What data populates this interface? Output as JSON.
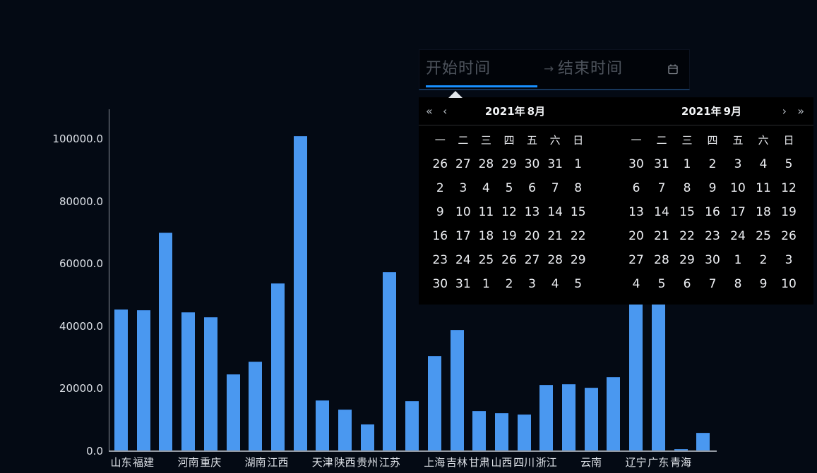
{
  "colors": {
    "background": "#040a14",
    "panel_background": "#000000",
    "bar_blue": "#4a98f0",
    "accent_blue": "#1890ff",
    "placeholder_gray": "#4d535c"
  },
  "date_picker": {
    "start_placeholder": "开始时间",
    "separator_icon": "→",
    "end_placeholder": "结束时间",
    "suffix_icon": "calendar-icon"
  },
  "calendar": {
    "nav": {
      "prev_year": "«",
      "prev_month": "‹",
      "next_month": "›",
      "next_year": "»"
    },
    "weekdays": [
      "一",
      "二",
      "三",
      "四",
      "五",
      "六",
      "日"
    ],
    "panels": [
      {
        "year": "2021年",
        "month": "8月",
        "rows": [
          [
            26,
            27,
            28,
            29,
            30,
            31,
            1
          ],
          [
            2,
            3,
            4,
            5,
            6,
            7,
            8
          ],
          [
            9,
            10,
            11,
            12,
            13,
            14,
            15
          ],
          [
            16,
            17,
            18,
            19,
            20,
            21,
            22
          ],
          [
            23,
            24,
            25,
            26,
            27,
            28,
            29
          ],
          [
            30,
            31,
            1,
            2,
            3,
            4,
            5
          ]
        ]
      },
      {
        "year": "2021年",
        "month": "9月",
        "rows": [
          [
            30,
            31,
            1,
            2,
            3,
            4,
            5
          ],
          [
            6,
            7,
            8,
            9,
            10,
            11,
            12
          ],
          [
            13,
            14,
            15,
            16,
            17,
            18,
            19
          ],
          [
            20,
            21,
            22,
            23,
            24,
            25,
            26
          ],
          [
            27,
            28,
            29,
            30,
            1,
            2,
            3
          ],
          [
            4,
            5,
            6,
            7,
            8,
            9,
            10
          ]
        ]
      }
    ]
  },
  "chart_data": {
    "type": "bar",
    "title": "",
    "xlabel": "",
    "ylabel": "",
    "categories": [
      "山东",
      "福建",
      "",
      "河南",
      "重庆",
      "",
      "湖南",
      "江西",
      "",
      "天津",
      "陕西",
      "贵州",
      "江苏",
      "",
      "上海",
      "吉林",
      "甘肃",
      "山西",
      "四川",
      "浙江",
      "",
      "云南",
      "",
      "辽宁",
      "广东",
      "青海",
      ""
    ],
    "values": [
      45300,
      45100,
      69900,
      44500,
      42900,
      24700,
      28700,
      53700,
      100900,
      16200,
      13300,
      8500,
      57300,
      16000,
      30500,
      38800,
      12800,
      12300,
      11700,
      21300,
      21400,
      20400,
      23600,
      48000,
      48000,
      600,
      5800
    ],
    "yticks": [
      "0.0",
      "20000.0",
      "40000.0",
      "60000.0",
      "80000.0",
      "100000.0"
    ],
    "ylim": [
      0,
      109500
    ],
    "grid": false,
    "legend": false,
    "bar_color": "#4a98f0"
  }
}
